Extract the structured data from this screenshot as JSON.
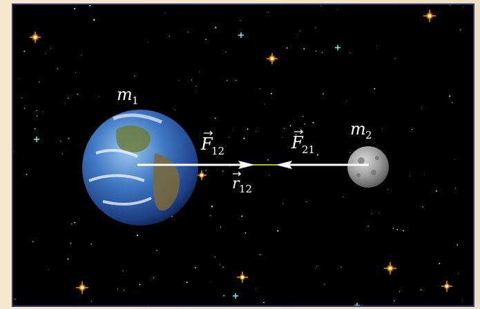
{
  "diagram": {
    "labels": {
      "m1": "m",
      "m1_sub": "1",
      "m2": "m",
      "m2_sub": "2",
      "F12": "F",
      "F12_sub": "12",
      "F21": "F",
      "F21_sub": "21",
      "r12": "r",
      "r12_sub": "12"
    },
    "colors": {
      "space": "#000000",
      "frame": "#2a3a7a",
      "border_bg": "#f3e4c8",
      "force_arrow": "#ffffff",
      "distance_line": "#ffff00"
    },
    "objects": [
      "earth",
      "moon"
    ]
  }
}
